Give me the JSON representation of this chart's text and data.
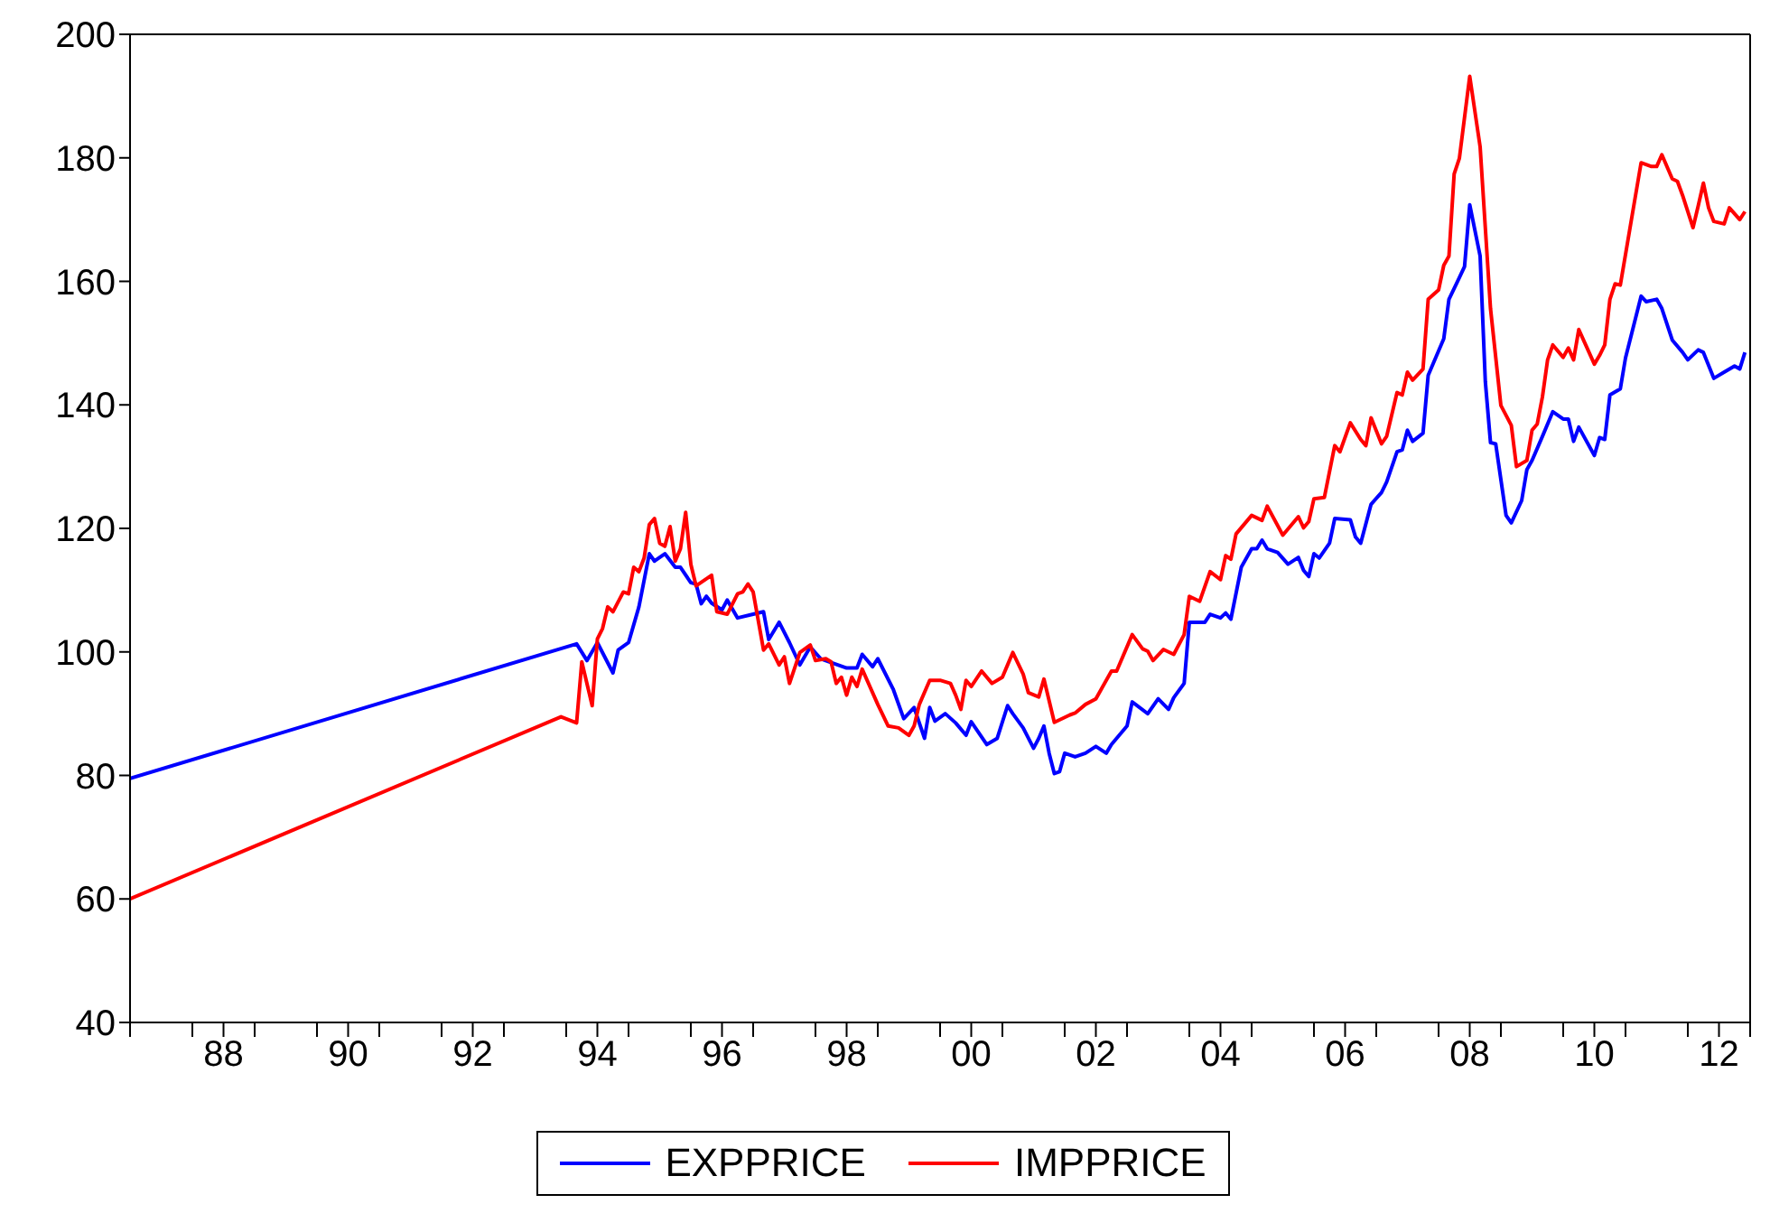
{
  "chart_data": {
    "type": "line",
    "xlim": [
      "1987-01",
      "2013-01"
    ],
    "ylim": [
      40,
      200
    ],
    "yticks": [
      40,
      60,
      80,
      100,
      120,
      140,
      160,
      180,
      200
    ],
    "xticks": [
      {
        "value": "1987",
        "label": null
      },
      {
        "value": "1988",
        "label": null
      },
      {
        "value": "1988-07",
        "label": "88"
      },
      {
        "value": "1989",
        "label": null
      },
      {
        "value": "1990",
        "label": null
      },
      {
        "value": "1990-07",
        "label": "90"
      },
      {
        "value": "1991",
        "label": null
      },
      {
        "value": "1992",
        "label": null
      },
      {
        "value": "1992-07",
        "label": "92"
      },
      {
        "value": "1993",
        "label": null
      },
      {
        "value": "1994",
        "label": null
      },
      {
        "value": "1994-07",
        "label": "94"
      },
      {
        "value": "1995",
        "label": null
      },
      {
        "value": "1996",
        "label": null
      },
      {
        "value": "1996-07",
        "label": "96"
      },
      {
        "value": "1997",
        "label": null
      },
      {
        "value": "1998",
        "label": null
      },
      {
        "value": "1998-07",
        "label": "98"
      },
      {
        "value": "1999",
        "label": null
      },
      {
        "value": "2000",
        "label": null
      },
      {
        "value": "2000-07",
        "label": "00"
      },
      {
        "value": "2001",
        "label": null
      },
      {
        "value": "2002",
        "label": null
      },
      {
        "value": "2002-07",
        "label": "02"
      },
      {
        "value": "2003",
        "label": null
      },
      {
        "value": "2004",
        "label": null
      },
      {
        "value": "2004-07",
        "label": "04"
      },
      {
        "value": "2005",
        "label": null
      },
      {
        "value": "2006",
        "label": null
      },
      {
        "value": "2006-07",
        "label": "06"
      },
      {
        "value": "2007",
        "label": null
      },
      {
        "value": "2008",
        "label": null
      },
      {
        "value": "2008-07",
        "label": "08"
      },
      {
        "value": "2009",
        "label": null
      },
      {
        "value": "2010",
        "label": null
      },
      {
        "value": "2010-07",
        "label": "10"
      },
      {
        "value": "2011",
        "label": null
      },
      {
        "value": "2012",
        "label": null
      },
      {
        "value": "2012-07",
        "label": "12"
      },
      {
        "value": "2013",
        "label": null
      }
    ],
    "grid": false,
    "legend": "bottom",
    "marker": "none",
    "line_style": "solid",
    "series": [
      {
        "name": "EXPPRICE",
        "color": "#0000ff",
        "x": [
          "1987-01",
          "1994-03",
          "1994-05",
          "1994-07",
          "1994-10",
          "1994-11",
          "1995-01",
          "1995-03",
          "1995-05",
          "1995-06",
          "1995-08",
          "1995-10",
          "1995-11",
          "1996-01",
          "1996-02",
          "1996-03",
          "1996-04",
          "1996-05",
          "1996-07",
          "1996-08",
          "1996-10",
          "1997-01",
          "1997-03",
          "1997-04",
          "1997-06",
          "1997-08",
          "1997-10",
          "1997-12",
          "1998-02",
          "1998-07",
          "1998-09",
          "1998-10",
          "1998-12",
          "1999-01",
          "1999-04",
          "1999-06",
          "1999-08",
          "1999-10",
          "1999-11",
          "1999-12",
          "2000-02",
          "2000-04",
          "2000-06",
          "2000-07",
          "2000-10",
          "2000-12",
          "2001-02",
          "2001-03",
          "2001-05",
          "2001-07",
          "2001-08",
          "2001-09",
          "2001-10",
          "2001-11",
          "2001-12",
          "2002-01",
          "2002-03",
          "2002-05",
          "2002-07",
          "2002-09",
          "2002-10",
          "2003-01",
          "2003-02",
          "2003-05",
          "2003-07",
          "2003-09",
          "2003-10",
          "2003-12",
          "2004-01",
          "2004-04",
          "2004-05",
          "2004-07",
          "2004-08",
          "2004-09",
          "2004-11",
          "2005-01",
          "2005-02",
          "2005-03",
          "2005-04",
          "2005-06",
          "2005-08",
          "2005-10",
          "2005-11",
          "2005-12",
          "2006-01",
          "2006-02",
          "2006-04",
          "2006-05",
          "2006-08",
          "2006-09",
          "2006-10",
          "2006-12",
          "2007-02",
          "2007-03",
          "2007-05",
          "2007-06",
          "2007-07",
          "2007-08",
          "2007-10",
          "2007-11",
          "2008-02",
          "2008-03",
          "2008-05",
          "2008-06",
          "2008-07",
          "2008-09",
          "2008-10",
          "2008-11",
          "2008-12",
          "2009-02",
          "2009-03",
          "2009-05",
          "2009-06",
          "2009-07",
          "2009-09",
          "2009-11",
          "2010-01",
          "2010-02",
          "2010-03",
          "2010-04",
          "2010-07",
          "2010-08",
          "2010-09",
          "2010-10",
          "2010-12",
          "2011-01",
          "2011-04",
          "2011-05",
          "2011-07",
          "2011-08",
          "2011-10",
          "2011-12",
          "2012-01",
          "2012-03",
          "2012-04",
          "2012-06",
          "2012-08",
          "2012-10",
          "2012-11",
          "2012-12"
        ],
        "values": [
          79.5,
          101.3,
          98.6,
          101.5,
          96.6,
          100.3,
          101.5,
          107.3,
          115.9,
          114.7,
          115.9,
          113.7,
          113.7,
          111.2,
          111.0,
          107.8,
          109.0,
          107.9,
          106.8,
          108.4,
          105.5,
          106.1,
          106.5,
          102.0,
          104.8,
          101.5,
          97.9,
          100.8,
          98.9,
          97.4,
          97.4,
          99.6,
          97.6,
          98.9,
          93.9,
          89.2,
          91.0,
          86.0,
          91.0,
          88.8,
          90.0,
          88.5,
          86.5,
          88.7,
          85.0,
          86.0,
          91.3,
          90.0,
          87.7,
          84.4,
          86.0,
          88.0,
          83.6,
          80.3,
          80.6,
          83.6,
          83.0,
          83.6,
          84.7,
          83.6,
          85.0,
          88.0,
          91.9,
          90.0,
          92.4,
          90.7,
          92.6,
          94.9,
          104.8,
          104.8,
          106.1,
          105.5,
          106.3,
          105.3,
          113.7,
          116.7,
          116.7,
          118.1,
          116.7,
          116.1,
          114.2,
          115.3,
          113.2,
          112.2,
          115.9,
          115.2,
          117.6,
          121.6,
          121.4,
          118.6,
          117.6,
          123.9,
          125.8,
          127.5,
          132.4,
          132.7,
          135.9,
          134.1,
          135.4,
          144.8,
          150.7,
          157.1,
          160.6,
          162.4,
          172.4,
          164.1,
          143.8,
          133.9,
          133.7,
          122.1,
          120.9,
          124.5,
          129.5,
          131.0,
          134.9,
          138.9,
          137.7,
          137.7,
          134.1,
          136.4,
          131.8,
          134.7,
          134.4,
          141.6,
          142.6,
          147.6,
          157.6,
          156.7,
          157.1,
          155.6,
          150.5,
          148.5,
          147.3,
          148.9,
          148.5,
          144.3,
          145.3,
          146.3,
          145.8,
          148.5
        ]
      },
      {
        "name": "IMPPRICE",
        "color": "#ff0000",
        "x": [
          "1987-01",
          "1993-12",
          "1994-03",
          "1994-04",
          "1994-06",
          "1994-07",
          "1994-08",
          "1994-09",
          "1994-10",
          "1994-12",
          "1995-01",
          "1995-02",
          "1995-03",
          "1995-04",
          "1995-05",
          "1995-06",
          "1995-07",
          "1995-08",
          "1995-09",
          "1995-10",
          "1995-11",
          "1995-12",
          "1996-01",
          "1996-02",
          "1996-05",
          "1996-06",
          "1996-08",
          "1996-10",
          "1996-11",
          "1996-12",
          "1997-01",
          "1997-03",
          "1997-04",
          "1997-06",
          "1997-07",
          "1997-08",
          "1997-10",
          "1997-12",
          "1998-01",
          "1998-03",
          "1998-04",
          "1998-05",
          "1998-06",
          "1998-07",
          "1998-08",
          "1998-09",
          "1998-10",
          "1998-12",
          "1999-01",
          "1999-03",
          "1999-05",
          "1999-07",
          "1999-08",
          "1999-09",
          "1999-11",
          "2000-01",
          "2000-03",
          "2000-04",
          "2000-05",
          "2000-06",
          "2000-07",
          "2000-09",
          "2000-11",
          "2001-01",
          "2001-02",
          "2001-03",
          "2001-05",
          "2001-06",
          "2001-08",
          "2001-09",
          "2001-11",
          "2002-02",
          "2002-03",
          "2002-05",
          "2002-07",
          "2002-08",
          "2002-10",
          "2002-11",
          "2003-02",
          "2003-04",
          "2003-05",
          "2003-06",
          "2003-08",
          "2003-10",
          "2003-12",
          "2004-01",
          "2004-03",
          "2004-05",
          "2004-07",
          "2004-08",
          "2004-09",
          "2004-10",
          "2005-01",
          "2005-03",
          "2005-04",
          "2005-07",
          "2005-10",
          "2005-11",
          "2005-12",
          "2006-01",
          "2006-03",
          "2006-05",
          "2006-06",
          "2006-08",
          "2006-10",
          "2006-11",
          "2006-12",
          "2007-02",
          "2007-03",
          "2007-05",
          "2007-06",
          "2007-07",
          "2007-08",
          "2007-10",
          "2007-11",
          "2008-01",
          "2008-02",
          "2008-03",
          "2008-04",
          "2008-05",
          "2008-07",
          "2008-09",
          "2008-11",
          "2009-01",
          "2009-03",
          "2009-04",
          "2009-06",
          "2009-07",
          "2009-08",
          "2009-09",
          "2009-10",
          "2009-11",
          "2010-01",
          "2010-02",
          "2010-03",
          "2010-04",
          "2010-07",
          "2010-08",
          "2010-09",
          "2010-10",
          "2010-11",
          "2010-12",
          "2011-04",
          "2011-06",
          "2011-07",
          "2011-08",
          "2011-10",
          "2011-11",
          "2011-12",
          "2012-02",
          "2012-03",
          "2012-04",
          "2012-05",
          "2012-06",
          "2012-08",
          "2012-09",
          "2012-11",
          "2012-12"
        ],
        "values": [
          60.0,
          89.5,
          88.5,
          98.4,
          91.3,
          102.1,
          103.8,
          107.3,
          106.5,
          109.7,
          109.4,
          113.7,
          113.0,
          115.2,
          120.6,
          121.6,
          117.6,
          117.1,
          120.3,
          114.7,
          116.7,
          122.6,
          114.2,
          110.7,
          112.4,
          106.5,
          106.1,
          109.4,
          109.7,
          111.0,
          109.7,
          100.3,
          101.3,
          97.9,
          99.2,
          94.9,
          99.9,
          101.1,
          98.6,
          98.9,
          98.4,
          94.9,
          95.9,
          93.0,
          95.9,
          94.4,
          97.2,
          93.4,
          91.5,
          88.0,
          87.7,
          86.5,
          88.0,
          91.5,
          95.4,
          95.4,
          94.9,
          93.0,
          90.7,
          95.4,
          94.4,
          96.9,
          94.9,
          95.9,
          97.9,
          99.9,
          96.4,
          93.4,
          92.7,
          95.6,
          88.6,
          89.8,
          90.1,
          91.5,
          92.4,
          93.9,
          96.9,
          96.9,
          102.8,
          100.5,
          100.1,
          98.6,
          100.4,
          99.6,
          102.8,
          109.0,
          108.2,
          113.0,
          111.7,
          115.6,
          115.0,
          119.1,
          122.1,
          121.3,
          123.6,
          118.9,
          121.9,
          120.1,
          121.1,
          124.8,
          125.0,
          133.4,
          132.4,
          137.1,
          134.4,
          133.4,
          137.9,
          133.7,
          134.9,
          142.0,
          141.6,
          145.3,
          144.0,
          145.8,
          157.1,
          158.6,
          162.6,
          164.1,
          177.4,
          179.9,
          193.2,
          181.8,
          155.6,
          139.9,
          136.7,
          130.0,
          131.0,
          135.9,
          136.9,
          141.3,
          147.3,
          149.7,
          147.7,
          149.2,
          147.3,
          152.2,
          146.6,
          148.0,
          149.7,
          157.1,
          159.6,
          159.4,
          179.2,
          178.6,
          178.6,
          180.5,
          176.6,
          176.2,
          173.9,
          168.7,
          172.2,
          175.9,
          171.9,
          169.7,
          169.3,
          171.9,
          170.0,
          171.3
        ]
      }
    ]
  }
}
